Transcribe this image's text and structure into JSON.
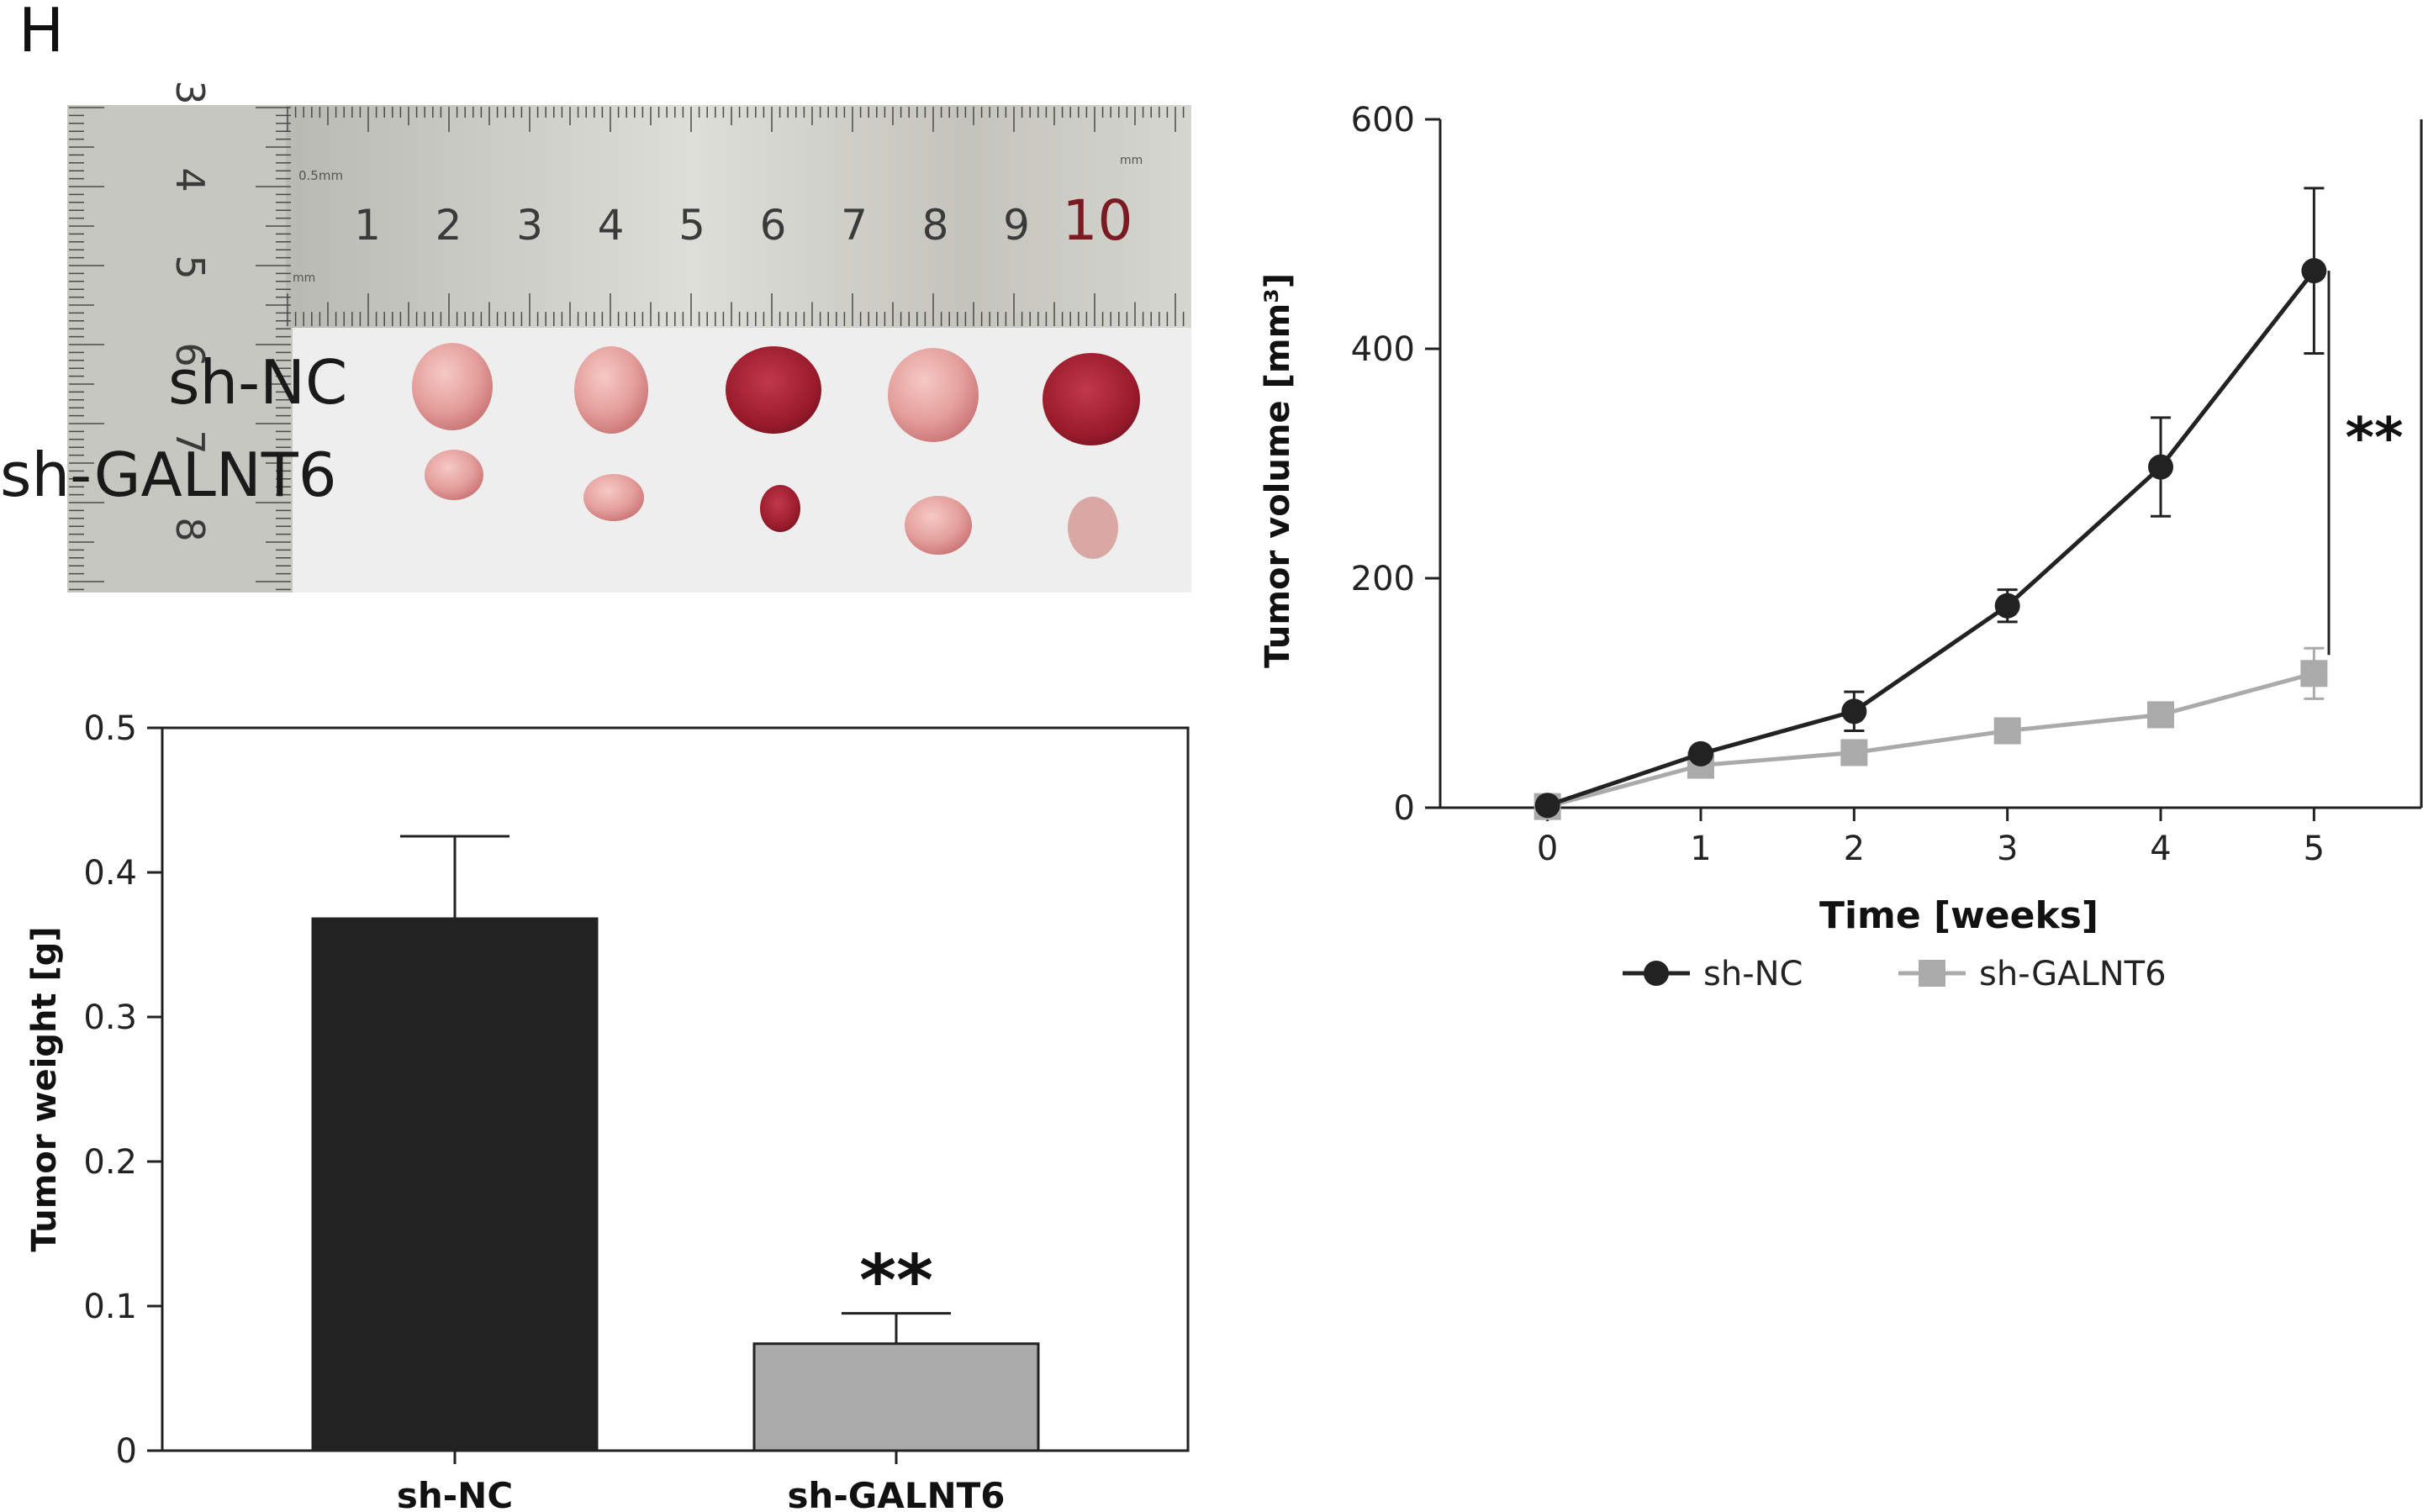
{
  "panel_label": "H",
  "photo": {
    "ruler_numbers_top": [
      "1",
      "2",
      "3",
      "4",
      "5",
      "6",
      "7",
      "8",
      "9",
      "10"
    ],
    "ruler_numbers_side": [
      "3",
      "4",
      "5",
      "6",
      "7",
      "8"
    ],
    "ruler_marks": [
      "0.5mm",
      "mm",
      "mm"
    ],
    "row_labels": [
      "sh-NC",
      "sh-GALNT6"
    ]
  },
  "colors": {
    "sh_nc": "#222222",
    "sh_galnt6": "#aaaaaa",
    "tumor_light": "#e8a4a4",
    "tumor_dark": "#a31c2e",
    "ruler": "#c9c9c3"
  },
  "chart_data": [
    {
      "type": "bar",
      "categories": [
        "sh-NC",
        "sh-GALNT6"
      ],
      "values": [
        0.368,
        0.074
      ],
      "errors": [
        0.057,
        0.021
      ],
      "colors": [
        "#222222",
        "#aaaaaa"
      ],
      "ylabel": "Tumor weight [g]",
      "ylim": [
        0,
        0.5
      ],
      "yticks": [
        0,
        0.1,
        0.2,
        0.3,
        0.4,
        0.5
      ],
      "ytick_labels": [
        "0",
        "0.1",
        "0.2",
        "0.3",
        "0.4",
        "0.5"
      ],
      "significance": [
        {
          "category": "sh-GALNT6",
          "label": "**"
        }
      ]
    },
    {
      "type": "line",
      "x": [
        0,
        1,
        2,
        3,
        4,
        5
      ],
      "series": [
        {
          "name": "sh-NC",
          "values": [
            2,
            47,
            84,
            176,
            297,
            468
          ],
          "errors": [
            0,
            0,
            17,
            14,
            43,
            72
          ],
          "marker": "circle",
          "color": "#222222"
        },
        {
          "name": "sh-GALNT6",
          "values": [
            1,
            37,
            48,
            67,
            81,
            117
          ],
          "errors": [
            0,
            0,
            0,
            0,
            0,
            22
          ],
          "marker": "square",
          "color": "#aaaaaa"
        }
      ],
      "xlabel": "Time [weeks]",
      "ylabel": "Tumor volume [mm³]",
      "xlim": [
        -0.7,
        5.7
      ],
      "ylim": [
        0,
        600
      ],
      "xticks": [
        0,
        1,
        2,
        3,
        4,
        5
      ],
      "yticks": [
        0,
        200,
        400,
        600
      ],
      "ytick_labels": [
        "0",
        "200",
        "400",
        "600"
      ],
      "legend": "bottom",
      "significance": [
        {
          "label": "**",
          "span": [
            0,
            5
          ]
        }
      ]
    }
  ]
}
